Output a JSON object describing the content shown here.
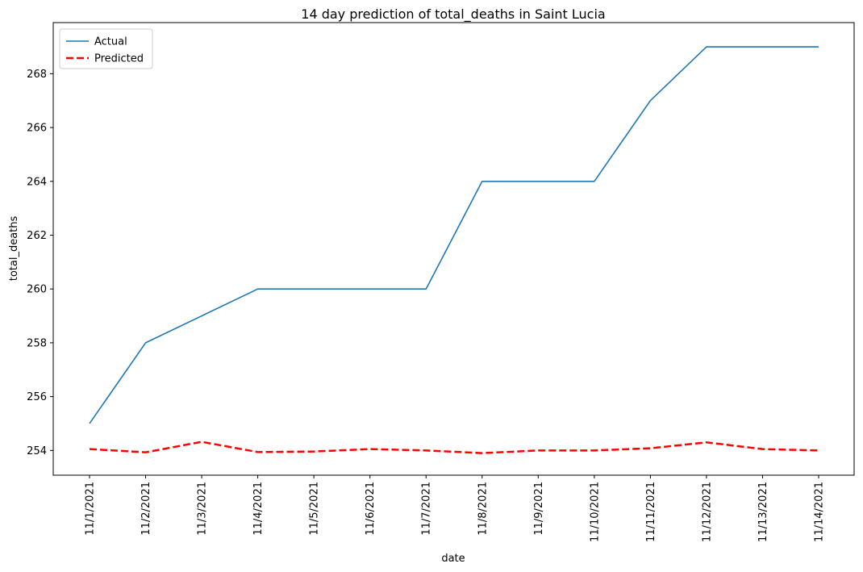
{
  "chart_data": {
    "type": "line",
    "title": "14 day prediction of total_deaths in Saint Lucia",
    "xlabel": "date",
    "ylabel": "total_deaths",
    "categories": [
      "11/1/2021",
      "11/2/2021",
      "11/3/2021",
      "11/4/2021",
      "11/5/2021",
      "11/6/2021",
      "11/7/2021",
      "11/8/2021",
      "11/9/2021",
      "11/10/2021",
      "11/11/2021",
      "11/12/2021",
      "11/13/2021",
      "11/14/2021"
    ],
    "series": [
      {
        "name": "Actual",
        "color": "#1f77b4",
        "style": "solid",
        "values": [
          255,
          258,
          259,
          260,
          260,
          260,
          260,
          264,
          264,
          264,
          267,
          269,
          269,
          269
        ]
      },
      {
        "name": "Predicted",
        "color": "#ff0000",
        "style": "dashed",
        "values": [
          254.05,
          253.93,
          254.32,
          253.94,
          253.96,
          254.05,
          254.0,
          253.9,
          254.0,
          254.0,
          254.08,
          254.3,
          254.05,
          254.0
        ]
      }
    ],
    "ylim": [
      253.08,
      269.9
    ],
    "yticks": [
      254,
      256,
      258,
      260,
      262,
      264,
      266,
      268
    ],
    "grid": false,
    "legend_position": "top-left"
  }
}
